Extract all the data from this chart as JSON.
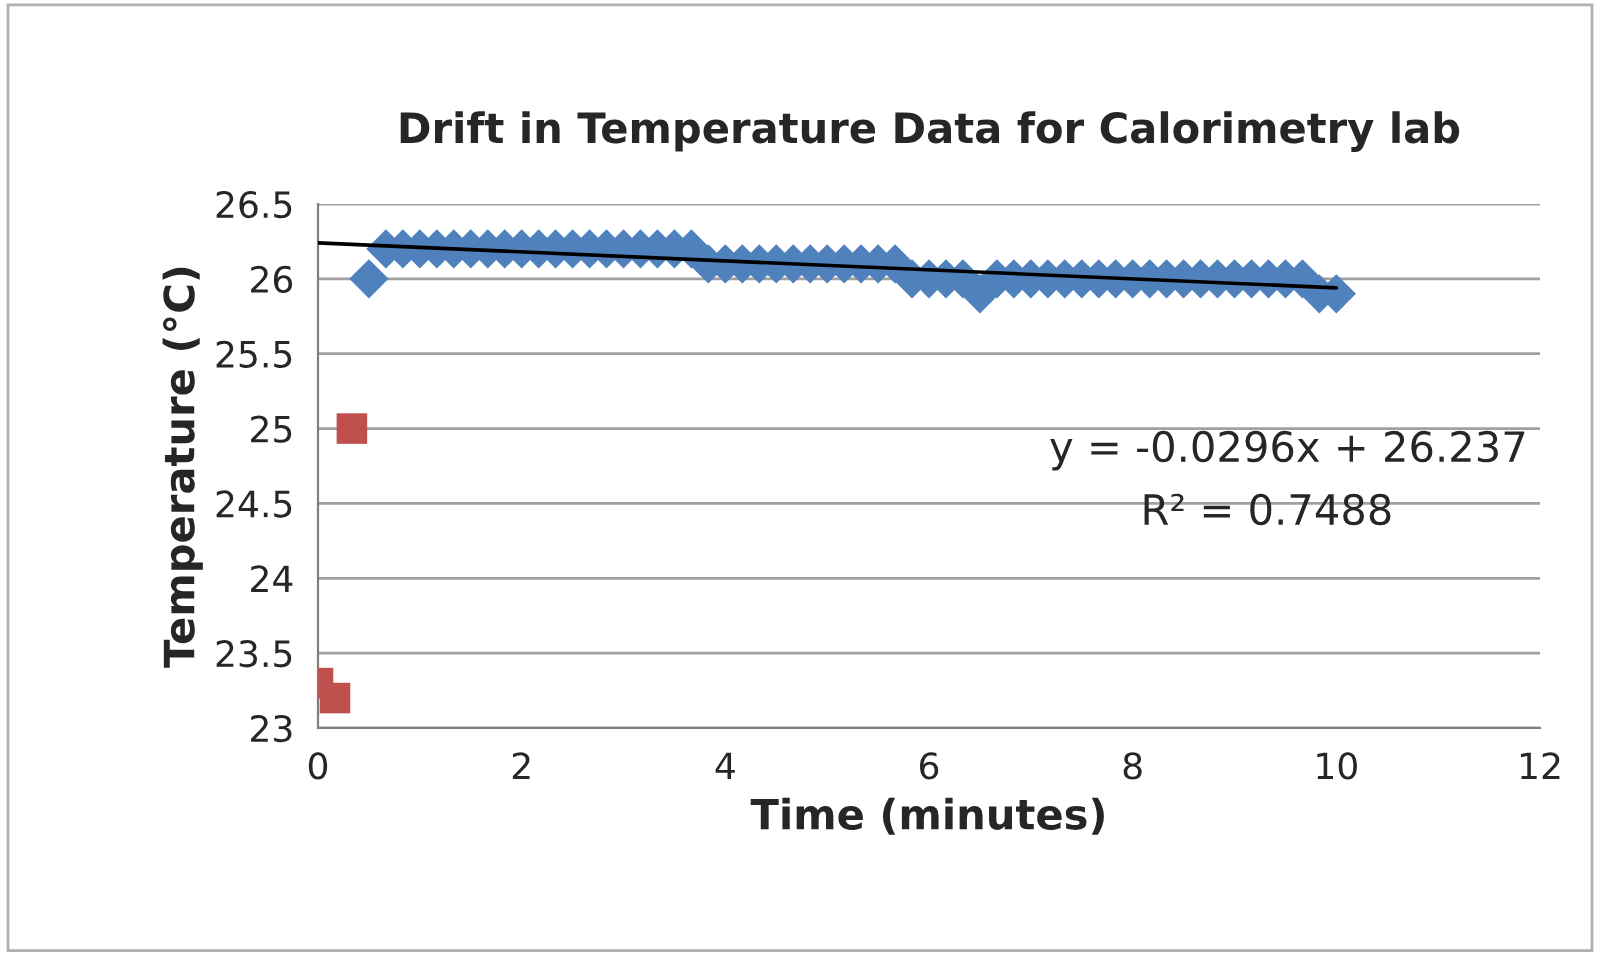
{
  "chart_data": {
    "type": "scatter",
    "title": "Drift in Temperature Data for Calorimetry lab",
    "xlabel": "Time (minutes)",
    "ylabel": "Temperature (°C)",
    "xlim": [
      0,
      12
    ],
    "xticks": [
      0,
      2,
      4,
      6,
      8,
      10,
      12
    ],
    "ylim": [
      23,
      26.5
    ],
    "yticks": [
      23,
      23.5,
      24,
      24.5,
      25,
      25.5,
      26,
      26.5
    ],
    "grid": "y",
    "legend": false,
    "annotations": [
      "y = -0.0296x + 26.237",
      "R² = 0.7488"
    ],
    "series": [
      {
        "marker": "diamond",
        "color": "#4f81bd",
        "x": [
          0.5,
          0.667,
          0.833,
          1,
          1.167,
          1.333,
          1.5,
          1.667,
          1.833,
          2,
          2.167,
          2.333,
          2.5,
          2.667,
          2.833,
          3,
          3.167,
          3.333,
          3.5,
          3.667,
          3.833,
          4,
          4.167,
          4.333,
          4.5,
          4.667,
          4.833,
          5,
          5.167,
          5.333,
          5.5,
          5.667,
          5.833,
          6,
          6.167,
          6.333,
          6.5,
          6.667,
          6.833,
          7,
          7.167,
          7.333,
          7.5,
          7.667,
          7.833,
          8,
          8.167,
          8.333,
          8.5,
          8.667,
          8.833,
          9,
          9.167,
          9.333,
          9.5,
          9.667,
          9.833,
          10
        ],
        "values": [
          26.0,
          26.2,
          26.2,
          26.2,
          26.2,
          26.2,
          26.2,
          26.2,
          26.2,
          26.2,
          26.2,
          26.2,
          26.2,
          26.2,
          26.2,
          26.2,
          26.2,
          26.2,
          26.2,
          26.2,
          26.1,
          26.1,
          26.1,
          26.1,
          26.1,
          26.1,
          26.1,
          26.1,
          26.1,
          26.1,
          26.1,
          26.1,
          26.0,
          26.0,
          26.0,
          26.0,
          25.9,
          26.0,
          26.0,
          26.0,
          26.0,
          26.0,
          26.0,
          26.0,
          26.0,
          26.0,
          26.0,
          26.0,
          26.0,
          26.0,
          26.0,
          26.0,
          26.0,
          26.0,
          26.0,
          26.0,
          25.9,
          25.9
        ]
      },
      {
        "marker": "square",
        "color": "#c0504d",
        "x": [
          0,
          0.167,
          0.333
        ],
        "values": [
          23.3,
          23.2,
          25.0
        ]
      },
      {
        "type": "line",
        "marker": "none",
        "line_style": "solid",
        "color": "#000000",
        "x": [
          0,
          10
        ],
        "values": [
          26.24,
          25.94
        ]
      }
    ]
  }
}
